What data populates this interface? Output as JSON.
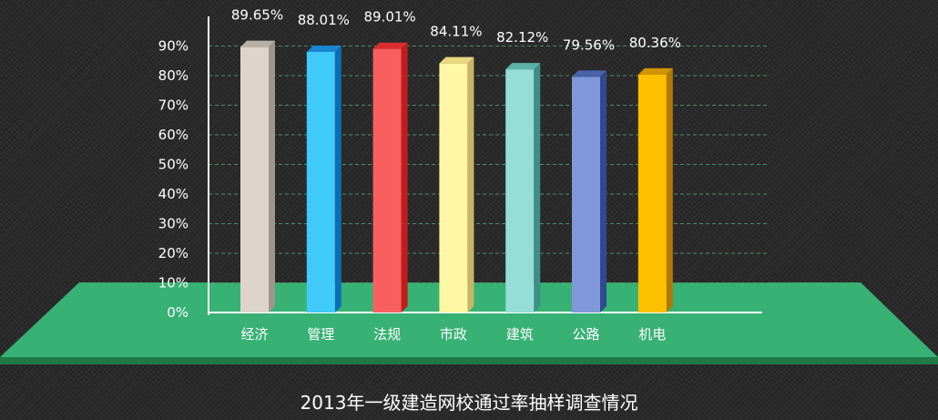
{
  "chart_data": {
    "type": "bar",
    "title": "2013年一级建造网校通过率抽样调查情况",
    "categories": [
      "经济",
      "管理",
      "法规",
      "市政",
      "建筑",
      "公路",
      "机电"
    ],
    "values": [
      89.65,
      88.01,
      89.01,
      84.11,
      82.12,
      79.56,
      80.36
    ],
    "data_labels": [
      "89.65%",
      "88.01%",
      "89.01%",
      "84.11%",
      "82.12%",
      "79.56%",
      "80.36%"
    ],
    "y_ticks": [
      "0%",
      "10%",
      "20%",
      "30%",
      "40%",
      "50%",
      "60%",
      "70%",
      "80%",
      "90%"
    ],
    "ylim": [
      0,
      100
    ],
    "grid": true,
    "colors": [
      {
        "front": "#ddd5cb",
        "side": "#9e968c",
        "top": "#b9b0a5"
      },
      {
        "front": "#3fcafa",
        "side": "#0a6fb6",
        "top": "#1b86d0"
      },
      {
        "front": "#fa5f5f",
        "side": "#c11d1d",
        "top": "#db2d2d"
      },
      {
        "front": "#fff7a3",
        "side": "#c9b664",
        "top": "#e8d780"
      },
      {
        "front": "#95ddd6",
        "side": "#3e8f86",
        "top": "#5fb1a7"
      },
      {
        "front": "#8098da",
        "side": "#2f4a8e",
        "top": "#4a63aa"
      },
      {
        "front": "#ffc000",
        "side": "#b07a00",
        "top": "#d19300"
      }
    ],
    "floor_color": "#37b174"
  }
}
